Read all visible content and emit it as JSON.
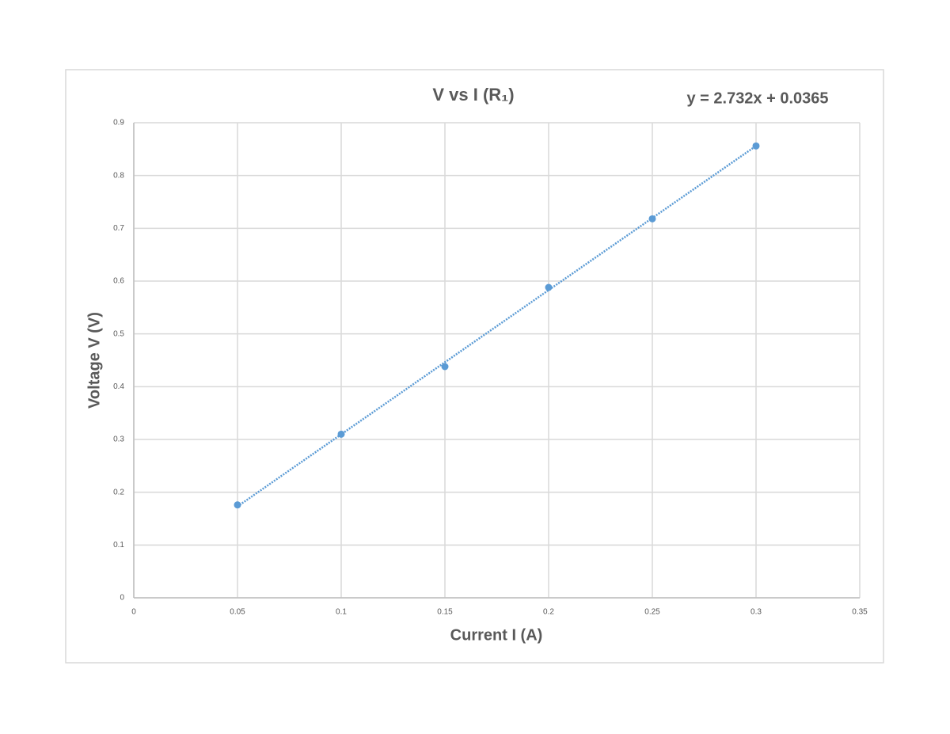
{
  "chart_data": {
    "type": "scatter",
    "title": "V vs I (R₁)",
    "xlabel": "Current I (A)",
    "ylabel": "Voltage V (V)",
    "x": [
      0.05,
      0.1,
      0.15,
      0.2,
      0.25,
      0.3
    ],
    "values": [
      0.176,
      0.31,
      0.438,
      0.588,
      0.718,
      0.856
    ],
    "color": "#5b9bd5",
    "trendline": {
      "slope": 2.732,
      "intercept": 0.0365,
      "label": "y = 2.732x + 0.0365"
    },
    "xlim": [
      0,
      0.35
    ],
    "xticks": [
      0,
      0.05,
      0.1,
      0.15,
      0.2,
      0.25,
      0.3,
      0.35
    ],
    "ylim": [
      0,
      0.9
    ],
    "yticks": [
      0,
      0.1,
      0.2,
      0.3,
      0.4,
      0.5,
      0.6,
      0.7,
      0.8,
      0.9
    ],
    "grid": true
  }
}
